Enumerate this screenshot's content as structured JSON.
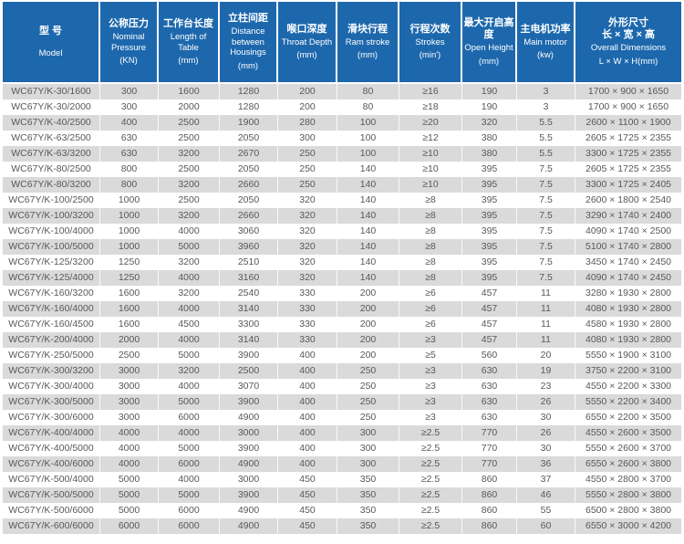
{
  "colors": {
    "header_bg": "#1d68ad",
    "row_alt_bg": "#dadada",
    "body_text": "#57585a",
    "header_text": "#ffffff"
  },
  "table": {
    "columns": [
      {
        "zh": "型 号",
        "zh2": "",
        "en": "Model",
        "unit": ""
      },
      {
        "zh": "公称压力",
        "zh2": "",
        "en": "Nominal Pressure",
        "unit": "(KN)"
      },
      {
        "zh": "工作台长度",
        "zh2": "",
        "en": "Length of Table",
        "unit": "(mm)"
      },
      {
        "zh": "立柱间距",
        "zh2": "",
        "en": "Distance between Housings",
        "unit": "(mm)"
      },
      {
        "zh": "喉口深度",
        "zh2": "",
        "en": "Throat Depth",
        "unit": "(mm)"
      },
      {
        "zh": "滑块行程",
        "zh2": "",
        "en": "Ram stroke",
        "unit": "(mm)"
      },
      {
        "zh": "行程次数",
        "zh2": "",
        "en": "Strokes",
        "unit": "(min')"
      },
      {
        "zh": "最大开启高度",
        "zh2": "",
        "en": "Open Height",
        "unit": "(mm)"
      },
      {
        "zh": "主电机功率",
        "zh2": "",
        "en": "Main motor",
        "unit": "(kw)"
      },
      {
        "zh": "外形尺寸",
        "zh2": "长 × 宽 × 高",
        "en": "Overall Dimensions",
        "unit": "L × W × H(mm)"
      }
    ],
    "rows": [
      [
        "WC67Y/K-30/1600",
        "300",
        "1600",
        "1280",
        "200",
        "80",
        "≥16",
        "190",
        "3",
        "1700 × 900 × 1650"
      ],
      [
        "WC67Y/K-30/2000",
        "300",
        "2000",
        "1280",
        "200",
        "80",
        "≥18",
        "190",
        "3",
        "1700 × 900 × 1650"
      ],
      [
        "WC67Y/K-40/2500",
        "400",
        "2500",
        "1900",
        "280",
        "100",
        "≥20",
        "320",
        "5.5",
        "2600 × 1100 × 1900"
      ],
      [
        "WC67Y/K-63/2500",
        "630",
        "2500",
        "2050",
        "300",
        "100",
        "≥12",
        "380",
        "5.5",
        "2605 × 1725 × 2355"
      ],
      [
        "WC67Y/K-63/3200",
        "630",
        "3200",
        "2670",
        "250",
        "100",
        "≥10",
        "380",
        "5.5",
        "3300 × 1725 × 2355"
      ],
      [
        "WC67Y/K-80/2500",
        "800",
        "2500",
        "2050",
        "250",
        "140",
        "≥10",
        "395",
        "7.5",
        "2605 × 1725 × 2355"
      ],
      [
        "WC67Y/K-80/3200",
        "800",
        "3200",
        "2660",
        "250",
        "140",
        "≥10",
        "395",
        "7.5",
        "3300 × 1725 × 2405"
      ],
      [
        "WC67Y/K-100/2500",
        "1000",
        "2500",
        "2050",
        "320",
        "140",
        "≥8",
        "395",
        "7.5",
        "2600 × 1800 × 2540"
      ],
      [
        "WC67Y/K-100/3200",
        "1000",
        "3200",
        "2660",
        "320",
        "140",
        "≥8",
        "395",
        "7.5",
        "3290 × 1740 × 2400"
      ],
      [
        "WC67Y/K-100/4000",
        "1000",
        "4000",
        "3060",
        "320",
        "140",
        "≥8",
        "395",
        "7.5",
        "4090 × 1740 × 2500"
      ],
      [
        "WC67Y/K-100/5000",
        "1000",
        "5000",
        "3960",
        "320",
        "140",
        "≥8",
        "395",
        "7.5",
        "5100 × 1740 × 2800"
      ],
      [
        "WC67Y/K-125/3200",
        "1250",
        "3200",
        "2510",
        "320",
        "140",
        "≥8",
        "395",
        "7.5",
        "3450 × 1740 × 2450"
      ],
      [
        "WC67Y/K-125/4000",
        "1250",
        "4000",
        "3160",
        "320",
        "140",
        "≥8",
        "395",
        "7.5",
        "4090 × 1740 × 2450"
      ],
      [
        "WC67Y/K-160/3200",
        "1600",
        "3200",
        "2540",
        "330",
        "200",
        "≥6",
        "457",
        "11",
        "3280 × 1930 × 2800"
      ],
      [
        "WC67Y/K-160/4000",
        "1600",
        "4000",
        "3140",
        "330",
        "200",
        "≥6",
        "457",
        "11",
        "4080 × 1930 × 2800"
      ],
      [
        "WC67Y/K-160/4500",
        "1600",
        "4500",
        "3300",
        "330",
        "200",
        "≥6",
        "457",
        "11",
        "4580 × 1930 × 2800"
      ],
      [
        "WC67Y/K-200/4000",
        "2000",
        "4000",
        "3140",
        "330",
        "200",
        "≥3",
        "457",
        "11",
        "4080 × 1930 × 2800"
      ],
      [
        "WC67Y/K-250/5000",
        "2500",
        "5000",
        "3900",
        "400",
        "200",
        "≥5",
        "560",
        "20",
        "5550 × 1900 × 3100"
      ],
      [
        "WC67Y/K-300/3200",
        "3000",
        "3200",
        "2500",
        "400",
        "250",
        "≥3",
        "630",
        "19",
        "3750 × 2200 × 3100"
      ],
      [
        "WC67Y/K-300/4000",
        "3000",
        "4000",
        "3070",
        "400",
        "250",
        "≥3",
        "630",
        "23",
        "4550 × 2200 × 3300"
      ],
      [
        "WC67Y/K-300/5000",
        "3000",
        "5000",
        "3900",
        "400",
        "250",
        "≥3",
        "630",
        "26",
        "5550 × 2200 × 3400"
      ],
      [
        "WC67Y/K-300/6000",
        "3000",
        "6000",
        "4900",
        "400",
        "250",
        "≥3",
        "630",
        "30",
        "6550 × 2200 × 3500"
      ],
      [
        "WC67Y/K-400/4000",
        "4000",
        "4000",
        "3000",
        "400",
        "300",
        "≥2.5",
        "770",
        "26",
        "4550 × 2600 × 3500"
      ],
      [
        "WC67Y/K-400/5000",
        "4000",
        "5000",
        "3900",
        "400",
        "300",
        "≥2.5",
        "770",
        "30",
        "5550 × 2600 × 3700"
      ],
      [
        "WC67Y/K-400/6000",
        "4000",
        "6000",
        "4900",
        "400",
        "300",
        "≥2.5",
        "770",
        "36",
        "6550 × 2600 × 3800"
      ],
      [
        "WC67Y/K-500/4000",
        "5000",
        "4000",
        "3000",
        "450",
        "350",
        "≥2.5",
        "860",
        "37",
        "4550 × 2800 × 3700"
      ],
      [
        "WC67Y/K-500/5000",
        "5000",
        "5000",
        "3900",
        "450",
        "350",
        "≥2.5",
        "860",
        "46",
        "5550 × 2800 × 3800"
      ],
      [
        "WC67Y/K-500/6000",
        "5000",
        "6000",
        "4900",
        "450",
        "350",
        "≥2.5",
        "860",
        "55",
        "6500 × 2800 × 3800"
      ],
      [
        "WC67Y/K-600/6000",
        "6000",
        "6000",
        "4900",
        "450",
        "350",
        "≥2.5",
        "860",
        "60",
        "6550 × 3000 × 4200"
      ]
    ]
  }
}
